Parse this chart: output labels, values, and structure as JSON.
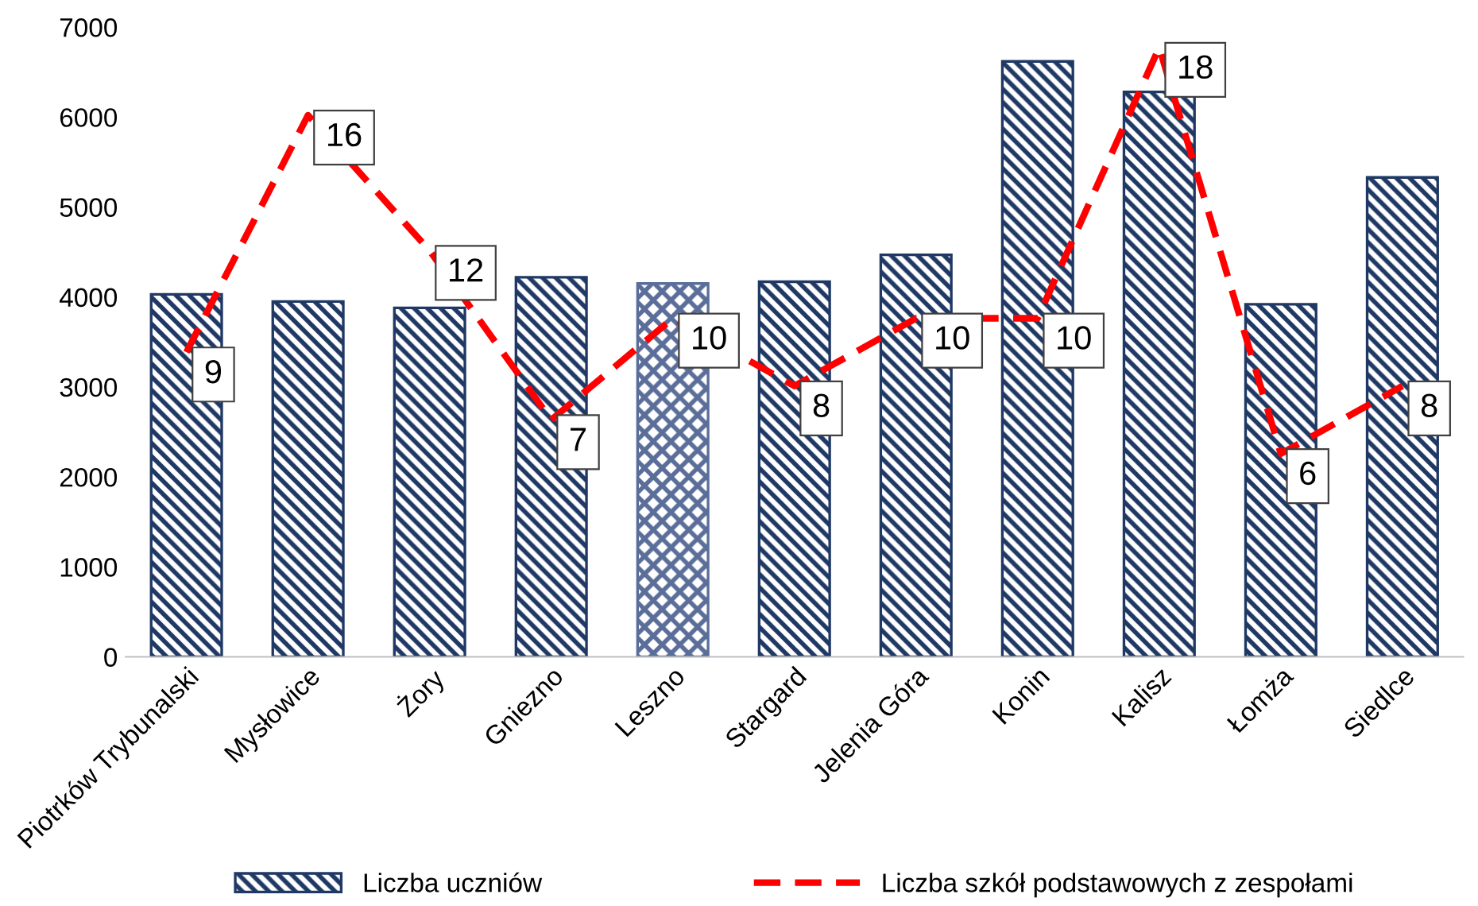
{
  "chart_data": {
    "type": "bar",
    "categories": [
      "Piotrków Trybunalski",
      "Mysłowice",
      "Żory",
      "Gniezno",
      "Leszno",
      "Stargard",
      "Jelenia Góra",
      "Konin",
      "Kalisz",
      "Łomża",
      "Siedlce"
    ],
    "series": [
      {
        "name": "Liczba uczniów",
        "color": "#1f3864",
        "colors": [
          "#1f3864",
          "#1f3864",
          "#1f3864",
          "#1f3864",
          "#5a6e99",
          "#1f3864",
          "#1f3864",
          "#1f3864",
          "#1f3864",
          "#1f3864",
          "#1f3864"
        ],
        "values": [
          4030,
          3950,
          3880,
          4220,
          4150,
          4170,
          4470,
          6620,
          6280,
          3920,
          5330
        ]
      },
      {
        "name": "Liczba szkół podstawowych z zespołami",
        "type": "line",
        "axis": "y2",
        "color": "#ff0000",
        "line_style": "dashed",
        "marker": "none",
        "data_labels": true,
        "values": [
          9,
          16,
          12,
          7,
          10,
          8,
          10,
          10,
          18,
          6,
          8
        ]
      }
    ],
    "ylim": [
      0,
      7000
    ],
    "yticks": [
      0,
      1000,
      2000,
      3000,
      4000,
      5000,
      6000,
      7000
    ],
    "tick_labels": [
      "x",
      "y"
    ],
    "grid": false,
    "legend": "bottom"
  }
}
